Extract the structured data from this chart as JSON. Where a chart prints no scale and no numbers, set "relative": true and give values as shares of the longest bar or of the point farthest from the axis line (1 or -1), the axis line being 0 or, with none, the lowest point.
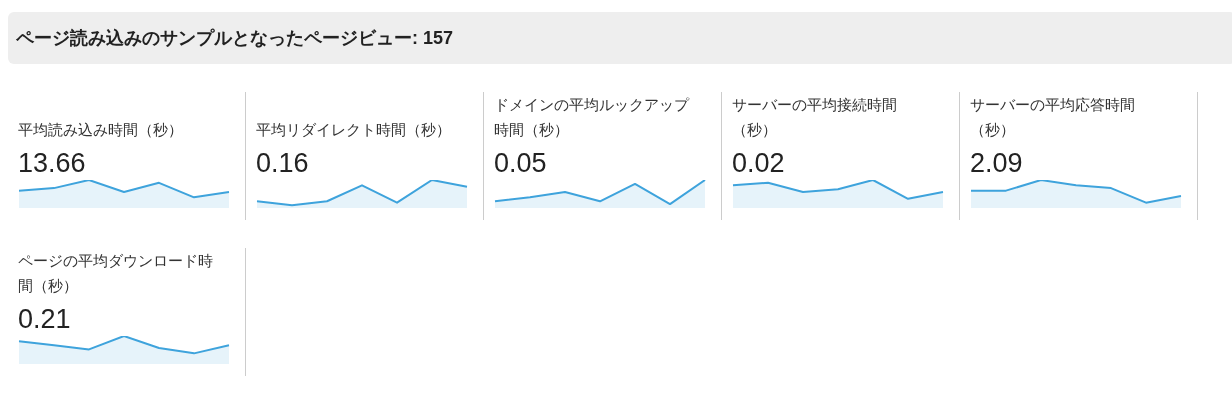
{
  "chart_data": [
    {
      "type": "other",
      "title": "ページ読み込みのサンプルとなったページビュー: 157"
    },
    {
      "type": "area",
      "title": "平均読み込み時間（秒）",
      "annotations": [
        "13.66"
      ],
      "relative": true,
      "categories": [
        null,
        null,
        null,
        null,
        null,
        null,
        null
      ],
      "series": [
        {
          "color": "#3ea3dc",
          "values": [
            0.62,
            0.71,
            1,
            0.57,
            0.9,
            0.38,
            0.57
          ]
        }
      ]
    },
    {
      "type": "area",
      "title": "平均リダイレクト時間（秒）",
      "annotations": [
        "0.16"
      ],
      "relative": true,
      "categories": [
        null,
        null,
        null,
        null,
        null,
        null,
        null
      ],
      "series": [
        {
          "color": "#3ea3dc",
          "values": [
            0.24,
            0.1,
            0.24,
            0.81,
            0.19,
            1,
            0.76
          ]
        }
      ]
    },
    {
      "type": "area",
      "title": "ドメインの平均ルックアップ時間（秒）",
      "annotations": [
        "0.05"
      ],
      "relative": true,
      "categories": [
        null,
        null,
        null,
        null,
        null,
        null,
        null
      ],
      "series": [
        {
          "color": "#3ea3dc",
          "values": [
            0.24,
            0.38,
            0.57,
            0.24,
            0.86,
            0.14,
            1
          ]
        }
      ]
    },
    {
      "type": "area",
      "title": "サーバーの平均接続時間（秒）",
      "annotations": [
        "0.02"
      ],
      "relative": true,
      "categories": [
        null,
        null,
        null,
        null,
        null,
        null,
        null
      ],
      "series": [
        {
          "color": "#3ea3dc",
          "values": [
            0.81,
            0.9,
            0.57,
            0.67,
            1,
            0.33,
            0.57
          ]
        }
      ]
    },
    {
      "type": "area",
      "title": "サーバーの平均応答時間（秒）",
      "annotations": [
        "2.09"
      ],
      "relative": true,
      "categories": [
        null,
        null,
        null,
        null,
        null,
        null,
        null
      ],
      "series": [
        {
          "color": "#3ea3dc",
          "values": [
            0.62,
            0.62,
            1,
            0.81,
            0.71,
            0.19,
            0.43
          ]
        }
      ]
    },
    {
      "type": "area",
      "title": "ページの平均ダウンロード時間（秒）",
      "annotations": [
        "0.21"
      ],
      "relative": true,
      "categories": [
        null,
        null,
        null,
        null,
        null,
        null,
        null
      ],
      "series": [
        {
          "color": "#3ea3dc",
          "values": [
            0.81,
            0.67,
            0.52,
            1,
            0.57,
            0.38,
            0.67
          ]
        }
      ]
    }
  ]
}
